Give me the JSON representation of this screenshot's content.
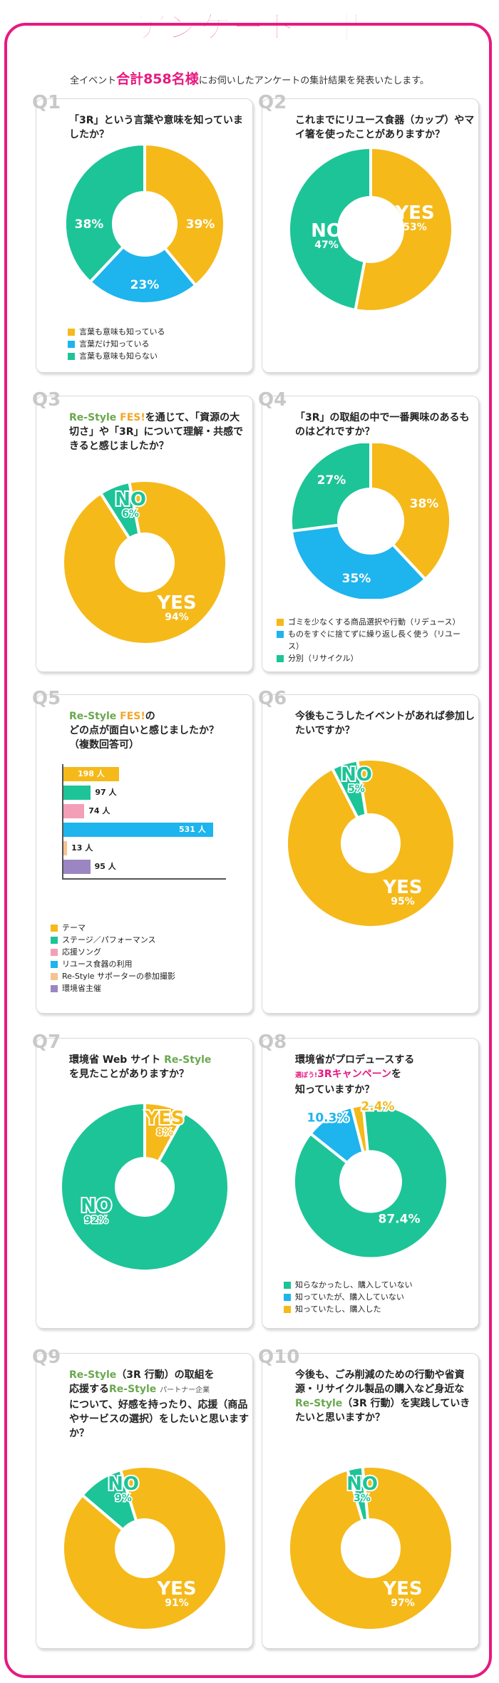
{
  "header": {
    "title": "アンケート結果",
    "intro_before": "全イベント",
    "intro_highlight": "合計858名様",
    "intro_after": "にお伺いしたアンケートの集計結果を発表いたします。"
  },
  "colors": {
    "yellow": "#f5b91a",
    "green": "#1dc497",
    "blue": "#1eb4ee",
    "pink": "#f39fb8",
    "orange": "#f6c28f",
    "purple": "#9b86c2",
    "accent": "#e8197f"
  },
  "questions": {
    "q1": {
      "num": "Q1",
      "text": "「3R」という言葉や意味を知っていましたか？"
    },
    "q2": {
      "num": "Q2",
      "text": "これまでにリユース食器（カップ）やマイ箸を使ったことがありますか？"
    },
    "q3": {
      "num": "Q3",
      "brand": "Re-Style",
      "brand_fes": "FES!",
      "text": "を通じて、「資源の大切さ」や「3R」について理解・共感できると感じましたか？"
    },
    "q4": {
      "num": "Q4",
      "text": "「3R」の取組の中で一番興味のあるものはどれですか？"
    },
    "q5": {
      "num": "Q5",
      "brand": "Re-Style",
      "brand_fes": "FES!",
      "text_a": "の",
      "text_b": "どの点が面白いと感じましたか？",
      "text_c": "（複数回答可）"
    },
    "q6": {
      "num": "Q6",
      "text": "今後もこうしたイベントがあれば参加したいですか？"
    },
    "q7": {
      "num": "Q7",
      "text_a": "環境省 Web サイト",
      "brand": "Re-Style",
      "text_b": "を見たことがありますか？"
    },
    "q8": {
      "num": "Q8",
      "text_a": "環境省がプロデュースする",
      "campaign_pre": "選ぼう!",
      "campaign": "3Rキャンペーン",
      "text_b": "を",
      "text_c": "知っていますか？"
    },
    "q9": {
      "num": "Q9",
      "brand": "Re-Style",
      "text_a": "（3R 行動）の取組を",
      "text_b": "応援する",
      "brand2": "Re-Style",
      "brand2_suffix": "パートナー企業",
      "text_c": "について、好感を持ったり、応援（商品やサービスの選択）をしたいと思いますか？"
    },
    "q10": {
      "num": "Q10",
      "text_a": "今後も、ごみ削減のための行動や省資源・リサイクル製品の購入など身近な",
      "brand": "Re-Style",
      "text_b": "（3R 行動）を実践していきたいと思いますか？"
    }
  },
  "chart_data": [
    {
      "id": "q1",
      "type": "pie",
      "donut": true,
      "slices": [
        {
          "name": "言葉も意味も知っている",
          "value": 39,
          "label": "39%",
          "color": "#f5b91a"
        },
        {
          "name": "言葉だけ知っている",
          "value": 23,
          "label": "23%",
          "color": "#1eb4ee"
        },
        {
          "name": "言葉も意味も知らない",
          "value": 38,
          "label": "38%",
          "color": "#1dc497"
        }
      ]
    },
    {
      "id": "q2",
      "type": "pie",
      "donut": true,
      "slices": [
        {
          "name": "YES",
          "value": 53,
          "label": "53%",
          "color": "#f5b91a"
        },
        {
          "name": "NO",
          "value": 47,
          "label": "47%",
          "color": "#1dc497"
        }
      ]
    },
    {
      "id": "q3",
      "type": "pie",
      "donut": true,
      "slices": [
        {
          "name": "YES",
          "value": 94,
          "label": "94%",
          "color": "#f5b91a"
        },
        {
          "name": "NO",
          "value": 6,
          "label": "6%",
          "color": "#1dc497"
        }
      ]
    },
    {
      "id": "q4",
      "type": "pie",
      "donut": true,
      "slices": [
        {
          "name": "ゴミを少なくする商品選択や行動（リデュース）",
          "value": 38,
          "label": "38%",
          "color": "#f5b91a"
        },
        {
          "name": "ものをすぐに捨てずに繰り返し長く使う（リユース）",
          "value": 35,
          "label": "35%",
          "color": "#1eb4ee"
        },
        {
          "name": "分別（リサイクル）",
          "value": 27,
          "label": "27%",
          "color": "#1dc497"
        }
      ]
    },
    {
      "id": "q5",
      "type": "bar",
      "orientation": "horizontal",
      "categories": [
        "テーマ",
        "ステージ／パフォーマンス",
        "応援ソング",
        "リユース食器の利用",
        "Re-Style サポーターの参加撮影",
        "環境省主催"
      ],
      "values": [
        198,
        97,
        74,
        531,
        13,
        95
      ],
      "value_labels": [
        "198 人",
        "97 人",
        "74 人",
        "531 人",
        "13 人",
        "95 人"
      ],
      "colors": [
        "#f5b91a",
        "#1dc497",
        "#f39fb8",
        "#1eb4ee",
        "#f6c28f",
        "#9b86c2"
      ]
    },
    {
      "id": "q6",
      "type": "pie",
      "donut": true,
      "slices": [
        {
          "name": "YES",
          "value": 95,
          "label": "95%",
          "color": "#f5b91a"
        },
        {
          "name": "NO",
          "value": 5,
          "label": "5%",
          "color": "#1dc497"
        }
      ]
    },
    {
      "id": "q7",
      "type": "pie",
      "donut": true,
      "slices": [
        {
          "name": "YES",
          "value": 8,
          "label": "8%",
          "color": "#f5b91a"
        },
        {
          "name": "NO",
          "value": 92,
          "label": "92%",
          "color": "#1dc497"
        }
      ]
    },
    {
      "id": "q8",
      "type": "pie",
      "donut": true,
      "slices": [
        {
          "name": "知らなかったし、購入していない",
          "value": 87.4,
          "label": "87.4%",
          "color": "#1dc497"
        },
        {
          "name": "知っていたが、購入していない",
          "value": 10.3,
          "label": "10.3%",
          "color": "#1eb4ee"
        },
        {
          "name": "知っていたし、購入した",
          "value": 2.4,
          "label": "2.4%",
          "color": "#f5b91a"
        }
      ]
    },
    {
      "id": "q9",
      "type": "pie",
      "donut": true,
      "slices": [
        {
          "name": "YES",
          "value": 91,
          "label": "91%",
          "color": "#f5b91a"
        },
        {
          "name": "NO",
          "value": 9,
          "label": "9%",
          "color": "#1dc497"
        }
      ]
    },
    {
      "id": "q10",
      "type": "pie",
      "donut": true,
      "slices": [
        {
          "name": "YES",
          "value": 97,
          "label": "97%",
          "color": "#f5b91a"
        },
        {
          "name": "NO",
          "value": 3,
          "label": "3%",
          "color": "#1dc497"
        }
      ]
    }
  ]
}
